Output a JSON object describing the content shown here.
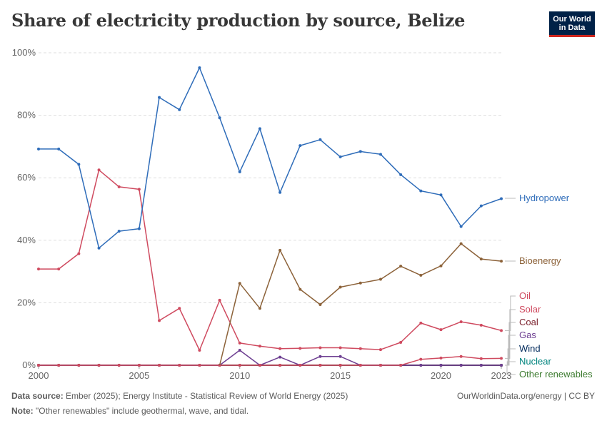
{
  "header": {
    "title": "Share of electricity production by source, Belize",
    "logo_line1": "Our World",
    "logo_line2": "in Data"
  },
  "footer": {
    "source_label": "Data source:",
    "source_text": "Ember (2025); Energy Institute - Statistical Review of World Energy (2025)",
    "note_label": "Note:",
    "note_text": "\"Other renewables\" include geothermal, wave, and tidal.",
    "credit": "OurWorldinData.org/energy | CC BY"
  },
  "colors": {
    "Hydropower": "#2e6cb9",
    "Bioenergy": "#8c6239",
    "Oil": "#cf4a5f",
    "Solar": "#cf4a5f",
    "Coal": "#7a1f2b",
    "Gas": "#6d3e91",
    "Wind": "#00295b",
    "Nuclear": "#00847e",
    "Other renewables": "#3c7b2f"
  },
  "chart_data": {
    "type": "line",
    "title": "Share of electricity production by source, Belize",
    "ylim": [
      0,
      100
    ],
    "yticks": [
      0,
      20,
      40,
      60,
      80,
      100
    ],
    "ytick_labels": [
      "0%",
      "20%",
      "40%",
      "60%",
      "80%",
      "100%"
    ],
    "xlim": [
      2000,
      2023
    ],
    "xticks": [
      2000,
      2005,
      2010,
      2015,
      2020,
      2023
    ],
    "xtick_labels": [
      "2000",
      "2005",
      "2010",
      "2015",
      "2020",
      "2023"
    ],
    "grid": "horizontal dashed",
    "legend": "right (inline labels)",
    "x": [
      2000,
      2001,
      2002,
      2003,
      2004,
      2005,
      2006,
      2007,
      2008,
      2009,
      2010,
      2011,
      2012,
      2013,
      2014,
      2015,
      2016,
      2017,
      2018,
      2019,
      2020,
      2021,
      2022,
      2023
    ],
    "series": [
      {
        "name": "Hydropower",
        "values": [
          69.2,
          69.2,
          64.3,
          37.5,
          42.9,
          43.7,
          85.7,
          81.8,
          95.2,
          79.2,
          61.9,
          75.7,
          55.3,
          70.3,
          72.2,
          66.7,
          68.4,
          67.5,
          61.0,
          55.8,
          54.5,
          44.4,
          51.0,
          53.3
        ]
      },
      {
        "name": "Bioenergy",
        "values": [
          0,
          0,
          0,
          0,
          0,
          0,
          0,
          0,
          0,
          0,
          26.2,
          18.2,
          36.8,
          24.3,
          19.4,
          25.0,
          26.3,
          27.5,
          31.7,
          28.8,
          31.8,
          38.9,
          34.0,
          33.3
        ]
      },
      {
        "name": "Oil",
        "values": [
          30.8,
          30.8,
          35.7,
          62.5,
          57.1,
          56.3,
          14.3,
          18.2,
          4.8,
          20.8,
          7.1,
          6.1,
          5.3,
          5.4,
          5.6,
          5.6,
          5.3,
          5.0,
          7.3,
          13.5,
          11.4,
          13.9,
          12.8,
          11.1
        ]
      },
      {
        "name": "Solar",
        "values": [
          0,
          0,
          0,
          0,
          0,
          0,
          0,
          0,
          0,
          0,
          0,
          0,
          0,
          0,
          0,
          0,
          0,
          0,
          0,
          1.9,
          2.3,
          2.8,
          2.1,
          2.2
        ]
      },
      {
        "name": "Coal",
        "values": [
          0,
          0,
          0,
          0,
          0,
          0,
          0,
          0,
          0,
          0,
          0,
          0,
          0,
          0,
          0,
          0,
          0,
          0,
          0,
          0,
          0,
          0,
          0,
          0
        ]
      },
      {
        "name": "Gas",
        "values": [
          0,
          0,
          0,
          0,
          0,
          0,
          0,
          0,
          0,
          0,
          4.8,
          0,
          2.6,
          0,
          2.8,
          2.8,
          0,
          0,
          0,
          0,
          0,
          0,
          0,
          0
        ]
      },
      {
        "name": "Wind",
        "values": [
          0,
          0,
          0,
          0,
          0,
          0,
          0,
          0,
          0,
          0,
          0,
          0,
          0,
          0,
          0,
          0,
          0,
          0,
          0,
          0,
          0,
          0,
          0,
          0
        ]
      },
      {
        "name": "Nuclear",
        "values": [
          0,
          0,
          0,
          0,
          0,
          0,
          0,
          0,
          0,
          0,
          0,
          0,
          0,
          0,
          0,
          0,
          0,
          0,
          0,
          0,
          0,
          0,
          0,
          0
        ]
      },
      {
        "name": "Other renewables",
        "values": [
          0,
          0,
          0,
          0,
          0,
          0,
          0,
          0,
          0,
          0,
          0,
          0,
          0,
          0,
          0,
          0,
          0,
          0,
          0,
          0,
          0,
          0,
          0,
          0
        ]
      }
    ]
  }
}
